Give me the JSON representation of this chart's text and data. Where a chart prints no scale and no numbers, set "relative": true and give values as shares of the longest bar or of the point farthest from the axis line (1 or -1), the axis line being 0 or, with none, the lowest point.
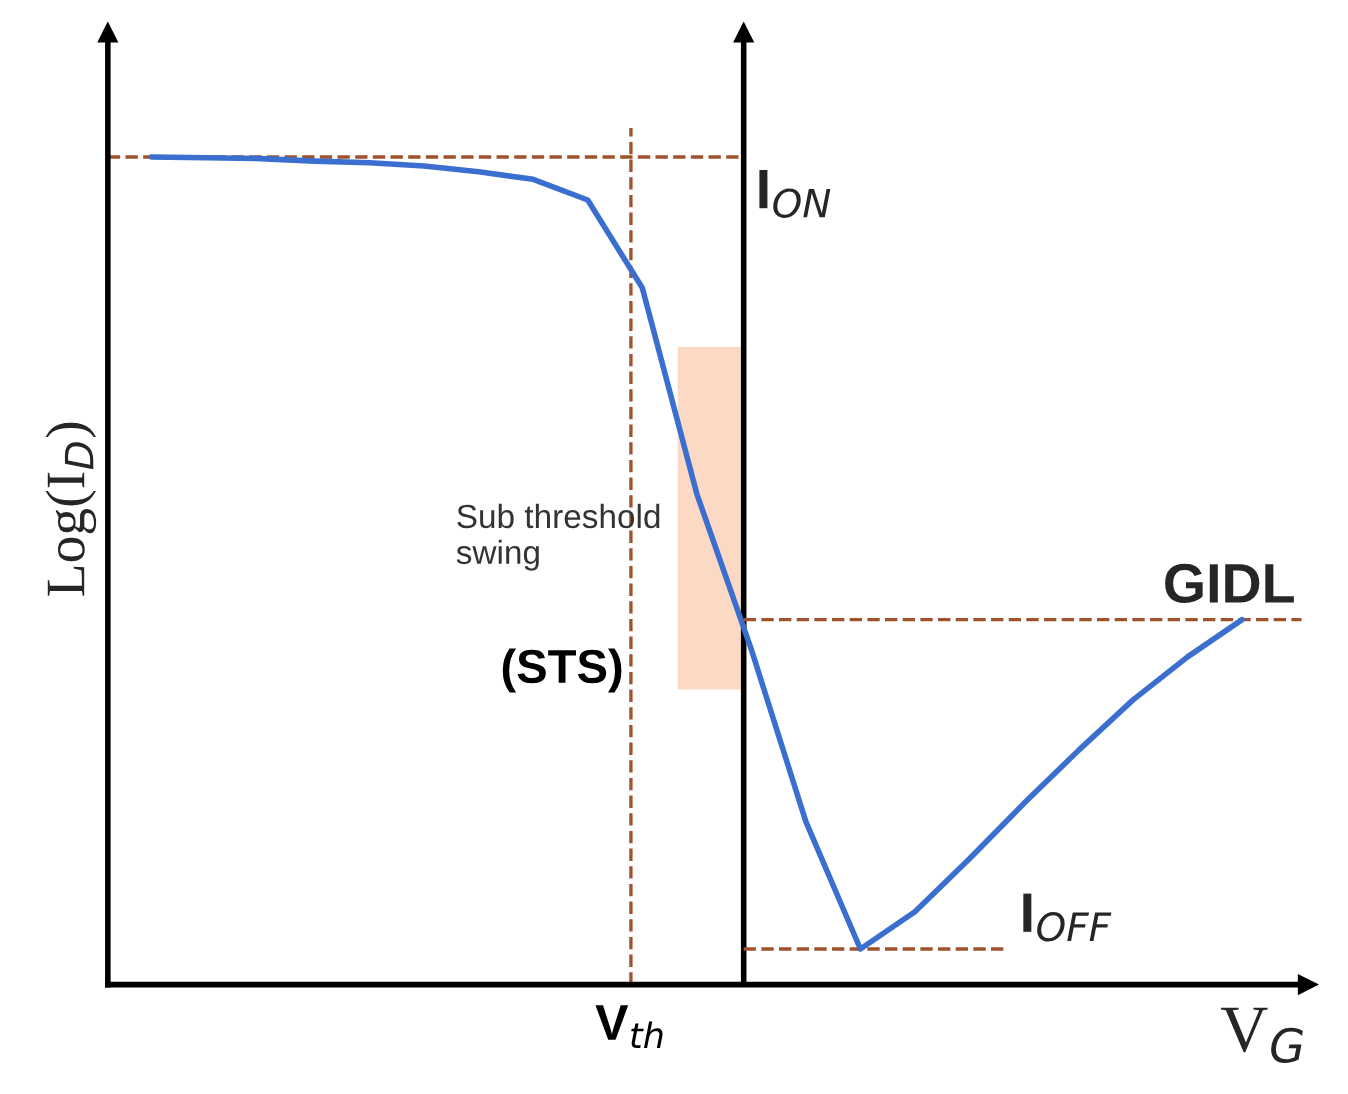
{
  "chart_data": {
    "type": "line",
    "relative": true,
    "xlabel": "V$_{G}$",
    "ylabel": "Log(I$_{D}$)",
    "categories": [
      null,
      null,
      null,
      null,
      null,
      null,
      null,
      null,
      null,
      null,
      null,
      null,
      null,
      null,
      null,
      null,
      null,
      null,
      null,
      null,
      null
    ],
    "series": [
      {
        "color": "#3a6fd0",
        "values": [
          1.0,
          0.999,
          0.998,
          0.995,
          0.993,
          0.989,
          0.982,
          0.973,
          0.948,
          0.842,
          0.593,
          0.405,
          0.197,
          0.043,
          0.088,
          0.152,
          0.219,
          0.283,
          0.344,
          0.396,
          0.441
        ]
      }
    ],
    "ref_lines": [
      {
        "axis": "y",
        "value": 1.0,
        "label": "I$_{ON}$",
        "color": "#a0522d",
        "line_style": "dashed"
      },
      {
        "axis": "y",
        "value": 0.441,
        "label": "GIDL",
        "color": "#a0522d",
        "line_style": "dashed"
      },
      {
        "axis": "y",
        "value": 0.043,
        "label": "I$_{OFF}$",
        "color": "#a0522d",
        "line_style": "dashed"
      }
    ],
    "annotations": [
      "Sub threshold\nswing",
      "(STS)",
      "V$_{th}$"
    ],
    "grid": false,
    "marker": "none",
    "line_style": "solid"
  }
}
